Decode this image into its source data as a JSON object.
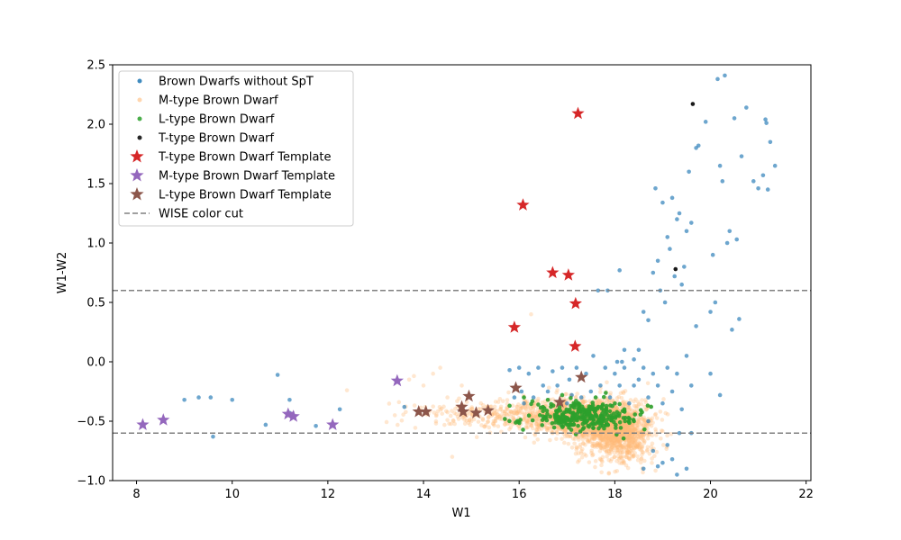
{
  "chart_data": {
    "type": "scatter",
    "title": "",
    "xlabel": "W1",
    "ylabel": "W1-W2",
    "xlim": [
      7.5,
      22.1
    ],
    "ylim": [
      -1.0,
      2.5
    ],
    "xticks": [
      8,
      10,
      12,
      14,
      16,
      18,
      20,
      22
    ],
    "yticks": [
      -1.0,
      -0.5,
      0.0,
      0.5,
      1.0,
      1.5,
      2.0,
      2.5
    ],
    "xtick_labels": [
      "8",
      "10",
      "12",
      "14",
      "16",
      "18",
      "20",
      "22"
    ],
    "ytick_labels": [
      "−1.0",
      "−0.5",
      "0.0",
      "0.5",
      "1.0",
      "1.5",
      "2.0",
      "2.5"
    ],
    "grid": false,
    "legend_position": "upper-left",
    "series": [
      {
        "name": "Brown Dwarfs without SpT",
        "marker": "dot",
        "color": "#1f77b4",
        "points": [
          [
            9.0,
            -0.32
          ],
          [
            9.3,
            -0.3
          ],
          [
            9.55,
            -0.3
          ],
          [
            9.6,
            -0.63
          ],
          [
            10.0,
            -0.32
          ],
          [
            10.7,
            -0.53
          ],
          [
            10.95,
            -0.11
          ],
          [
            11.2,
            -0.32
          ],
          [
            11.2,
            -0.43
          ],
          [
            11.75,
            -0.54
          ],
          [
            12.25,
            -0.4
          ],
          [
            13.6,
            -0.38
          ],
          [
            15.8,
            -0.07
          ],
          [
            15.9,
            -0.3
          ],
          [
            16.0,
            -0.05
          ],
          [
            16.05,
            -0.25
          ],
          [
            16.1,
            -0.35
          ],
          [
            16.2,
            -0.1
          ],
          [
            16.3,
            -0.3
          ],
          [
            16.4,
            -0.05
          ],
          [
            16.5,
            -0.2
          ],
          [
            16.6,
            -0.25
          ],
          [
            16.7,
            -0.08
          ],
          [
            16.8,
            -0.2
          ],
          [
            16.9,
            -0.05
          ],
          [
            17.0,
            -0.35
          ],
          [
            17.05,
            -0.15
          ],
          [
            17.1,
            -0.28
          ],
          [
            17.2,
            -0.05
          ],
          [
            17.3,
            -0.3
          ],
          [
            17.4,
            -0.1
          ],
          [
            17.5,
            -0.25
          ],
          [
            17.55,
            0.05
          ],
          [
            17.6,
            -0.4
          ],
          [
            17.7,
            -0.2
          ],
          [
            17.8,
            -0.05
          ],
          [
            17.9,
            -0.3
          ],
          [
            18.0,
            -0.1
          ],
          [
            18.05,
            0.0
          ],
          [
            18.1,
            -0.2
          ],
          [
            18.2,
            -0.05
          ],
          [
            18.3,
            -0.35
          ],
          [
            18.4,
            0.02
          ],
          [
            18.5,
            -0.15
          ],
          [
            18.6,
            -0.05
          ],
          [
            18.7,
            -0.3
          ],
          [
            18.8,
            -0.1
          ],
          [
            18.9,
            -0.2
          ],
          [
            19.0,
            -0.35
          ],
          [
            19.1,
            -0.05
          ],
          [
            19.2,
            -0.25
          ],
          [
            19.3,
            -0.1
          ],
          [
            19.4,
            -0.4
          ],
          [
            19.5,
            0.05
          ],
          [
            19.6,
            -0.2
          ],
          [
            19.7,
            0.3
          ],
          [
            20.2,
            -0.28
          ],
          [
            20.0,
            -0.1
          ],
          [
            17.65,
            0.6
          ],
          [
            17.85,
            0.6
          ],
          [
            18.1,
            0.77
          ],
          [
            18.15,
            0.0
          ],
          [
            18.2,
            0.1
          ],
          [
            18.4,
            -0.2
          ],
          [
            18.5,
            0.1
          ],
          [
            18.6,
            0.42
          ],
          [
            18.7,
            0.35
          ],
          [
            18.8,
            0.75
          ],
          [
            18.85,
            1.46
          ],
          [
            18.9,
            0.85
          ],
          [
            18.95,
            0.6
          ],
          [
            19.0,
            1.34
          ],
          [
            19.05,
            0.5
          ],
          [
            19.1,
            1.05
          ],
          [
            19.15,
            0.95
          ],
          [
            19.2,
            1.38
          ],
          [
            19.25,
            0.72
          ],
          [
            19.3,
            1.2
          ],
          [
            19.35,
            1.25
          ],
          [
            19.4,
            0.65
          ],
          [
            19.45,
            0.8
          ],
          [
            19.5,
            1.1
          ],
          [
            19.55,
            1.6
          ],
          [
            19.6,
            1.17
          ],
          [
            19.7,
            1.8
          ],
          [
            19.75,
            1.82
          ],
          [
            19.9,
            2.02
          ],
          [
            20.0,
            0.42
          ],
          [
            20.05,
            0.9
          ],
          [
            20.1,
            0.5
          ],
          [
            20.15,
            2.38
          ],
          [
            20.2,
            1.65
          ],
          [
            20.25,
            1.52
          ],
          [
            20.3,
            2.41
          ],
          [
            20.35,
            1.0
          ],
          [
            20.4,
            1.1
          ],
          [
            20.45,
            0.27
          ],
          [
            20.5,
            2.05
          ],
          [
            20.55,
            1.03
          ],
          [
            20.6,
            0.36
          ],
          [
            20.65,
            1.73
          ],
          [
            20.75,
            2.14
          ],
          [
            20.9,
            1.52
          ],
          [
            21.0,
            1.46
          ],
          [
            21.1,
            1.57
          ],
          [
            21.15,
            2.04
          ],
          [
            21.17,
            2.01
          ],
          [
            21.2,
            1.45
          ],
          [
            21.25,
            1.85
          ],
          [
            21.35,
            1.65
          ],
          [
            18.6,
            -0.9
          ],
          [
            18.8,
            -0.75
          ],
          [
            18.9,
            -0.88
          ],
          [
            19.0,
            -0.85
          ],
          [
            19.1,
            -0.7
          ],
          [
            19.2,
            -0.82
          ],
          [
            19.35,
            -0.6
          ],
          [
            19.5,
            -0.9
          ],
          [
            19.6,
            -0.6
          ],
          [
            19.3,
            -0.95
          ],
          [
            18.7,
            -0.5
          ]
        ]
      },
      {
        "name": "M-type Brown Dwarf",
        "marker": "dot",
        "color": "#ffbb78",
        "cloud": [
          {
            "cx": 17.6,
            "cy": -0.5,
            "sx": 0.45,
            "sy": 0.09,
            "n": 900,
            "seed": 11
          },
          {
            "cx": 18.1,
            "cy": -0.6,
            "sx": 0.35,
            "sy": 0.13,
            "n": 900,
            "seed": 12
          },
          {
            "cx": 16.8,
            "cy": -0.45,
            "sx": 0.6,
            "sy": 0.07,
            "n": 500,
            "seed": 13
          },
          {
            "cx": 15.2,
            "cy": -0.44,
            "sx": 0.8,
            "sy": 0.06,
            "n": 180,
            "seed": 14
          }
        ],
        "points": [
          [
            13.4,
            -0.45
          ],
          [
            13.7,
            -0.15
          ],
          [
            13.8,
            -0.12
          ],
          [
            14.0,
            -0.2
          ],
          [
            14.2,
            -0.1
          ],
          [
            14.35,
            -0.05
          ],
          [
            14.5,
            -0.3
          ],
          [
            14.6,
            -0.8
          ],
          [
            12.4,
            -0.24
          ],
          [
            16.25,
            0.4
          ],
          [
            15.0,
            -0.5
          ],
          [
            13.9,
            -0.42
          ],
          [
            14.1,
            -0.44
          ],
          [
            14.8,
            -0.2
          ],
          [
            15.4,
            -0.38
          ]
        ]
      },
      {
        "name": "L-type Brown Dwarf",
        "marker": "dot",
        "color": "#2ca02c",
        "cloud": [
          {
            "cx": 17.4,
            "cy": -0.46,
            "sx": 0.55,
            "sy": 0.06,
            "n": 300,
            "seed": 21
          }
        ],
        "points": [
          [
            16.1,
            -0.3
          ],
          [
            15.8,
            -0.37
          ],
          [
            16.4,
            -0.36
          ],
          [
            16.9,
            -0.28
          ],
          [
            18.2,
            -0.4
          ],
          [
            18.4,
            -0.5
          ],
          [
            17.6,
            -0.3
          ],
          [
            16.6,
            -0.32
          ]
        ]
      },
      {
        "name": "T-type Brown Dwarf",
        "marker": "dot",
        "color": "#000000",
        "points": [
          [
            19.63,
            2.17
          ],
          [
            19.27,
            0.78
          ]
        ]
      },
      {
        "name": "T-type Brown Dwarf Template",
        "marker": "star",
        "color": "#d62728",
        "points": [
          [
            17.23,
            2.09
          ],
          [
            16.08,
            1.32
          ],
          [
            16.7,
            0.75
          ],
          [
            17.03,
            0.73
          ],
          [
            17.18,
            0.49
          ],
          [
            15.9,
            0.29
          ],
          [
            17.17,
            0.13
          ]
        ]
      },
      {
        "name": "M-type Brown Dwarf Template",
        "marker": "star",
        "color": "#9467bd",
        "points": [
          [
            8.13,
            -0.53
          ],
          [
            8.56,
            -0.49
          ],
          [
            11.17,
            -0.44
          ],
          [
            11.28,
            -0.46
          ],
          [
            12.1,
            -0.53
          ],
          [
            13.45,
            -0.16
          ]
        ]
      },
      {
        "name": "L-type Brown Dwarf Template",
        "marker": "star",
        "color": "#8c564b",
        "points": [
          [
            13.9,
            -0.42
          ],
          [
            14.05,
            -0.42
          ],
          [
            14.8,
            -0.38
          ],
          [
            14.83,
            -0.42
          ],
          [
            14.95,
            -0.29
          ],
          [
            15.1,
            -0.43
          ],
          [
            15.35,
            -0.41
          ],
          [
            15.93,
            -0.22
          ],
          [
            16.85,
            -0.34
          ],
          [
            17.3,
            -0.13
          ]
        ]
      }
    ],
    "reference_lines": [
      {
        "name": "WISE color cut",
        "orientation": "horizontal",
        "y": 0.6,
        "color": "#808080",
        "style": "dashed"
      },
      {
        "name": "WISE color cut",
        "orientation": "horizontal",
        "y": -0.6,
        "color": "#808080",
        "style": "dashed"
      }
    ],
    "legend": [
      {
        "label": "Brown Dwarfs without SpT",
        "marker": "dot",
        "color": "#1f77b4"
      },
      {
        "label": "M-type Brown Dwarf",
        "marker": "dot",
        "color": "#ffbb78"
      },
      {
        "label": "L-type Brown Dwarf",
        "marker": "dot",
        "color": "#2ca02c"
      },
      {
        "label": "T-type Brown Dwarf",
        "marker": "dot",
        "color": "#000000"
      },
      {
        "label": "T-type Brown Dwarf Template",
        "marker": "star",
        "color": "#d62728"
      },
      {
        "label": "M-type Brown Dwarf Template",
        "marker": "star",
        "color": "#9467bd"
      },
      {
        "label": "L-type Brown Dwarf Template",
        "marker": "star",
        "color": "#8c564b"
      },
      {
        "label": "WISE color cut",
        "marker": "dashed-line",
        "color": "#808080"
      }
    ]
  }
}
